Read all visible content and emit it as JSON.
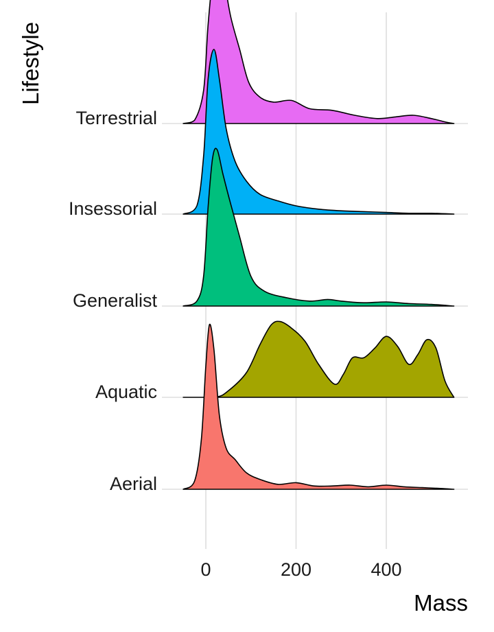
{
  "chart_data": {
    "type": "ridgeline",
    "xlabel": "Mass",
    "ylabel": "Lifestyle",
    "xlim": [
      -60,
      580
    ],
    "x_ticks": [
      0,
      200,
      400
    ],
    "grid": true,
    "legend": "none",
    "series": [
      {
        "name": "Aerial",
        "color": "#F8766D",
        "density_points": [
          [
            -50,
            0
          ],
          [
            -25,
            0.05
          ],
          [
            -10,
            0.3
          ],
          [
            0,
            0.75
          ],
          [
            8,
            1.0
          ],
          [
            18,
            0.85
          ],
          [
            30,
            0.45
          ],
          [
            45,
            0.25
          ],
          [
            65,
            0.18
          ],
          [
            90,
            0.1
          ],
          [
            120,
            0.06
          ],
          [
            160,
            0.03
          ],
          [
            200,
            0.04
          ],
          [
            240,
            0.02
          ],
          [
            280,
            0.02
          ],
          [
            320,
            0.025
          ],
          [
            360,
            0.015
          ],
          [
            400,
            0.025
          ],
          [
            440,
            0.015
          ],
          [
            480,
            0.01
          ],
          [
            520,
            0.005
          ],
          [
            550,
            0
          ]
        ]
      },
      {
        "name": "Aquatic",
        "color": "#A3A500",
        "density_points": [
          [
            -50,
            0
          ],
          [
            20,
            0
          ],
          [
            50,
            0.04
          ],
          [
            90,
            0.15
          ],
          [
            120,
            0.32
          ],
          [
            145,
            0.44
          ],
          [
            165,
            0.46
          ],
          [
            190,
            0.42
          ],
          [
            220,
            0.34
          ],
          [
            250,
            0.2
          ],
          [
            285,
            0.08
          ],
          [
            305,
            0.14
          ],
          [
            325,
            0.24
          ],
          [
            350,
            0.24
          ],
          [
            375,
            0.3
          ],
          [
            400,
            0.37
          ],
          [
            425,
            0.31
          ],
          [
            450,
            0.2
          ],
          [
            470,
            0.26
          ],
          [
            490,
            0.35
          ],
          [
            510,
            0.3
          ],
          [
            530,
            0.1
          ],
          [
            550,
            0
          ]
        ]
      },
      {
        "name": "Generalist",
        "color": "#00BF7D",
        "density_points": [
          [
            -50,
            0
          ],
          [
            -20,
            0.03
          ],
          [
            -5,
            0.18
          ],
          [
            5,
            0.6
          ],
          [
            15,
            0.9
          ],
          [
            25,
            0.95
          ],
          [
            38,
            0.8
          ],
          [
            55,
            0.62
          ],
          [
            75,
            0.42
          ],
          [
            100,
            0.18
          ],
          [
            130,
            0.09
          ],
          [
            180,
            0.05
          ],
          [
            230,
            0.03
          ],
          [
            270,
            0.04
          ],
          [
            300,
            0.03
          ],
          [
            350,
            0.02
          ],
          [
            400,
            0.025
          ],
          [
            450,
            0.015
          ],
          [
            500,
            0.01
          ],
          [
            550,
            0
          ]
        ]
      },
      {
        "name": "Insessorial",
        "color": "#00B0F6",
        "density_points": [
          [
            -50,
            0
          ],
          [
            -20,
            0.05
          ],
          [
            -5,
            0.35
          ],
          [
            5,
            0.82
          ],
          [
            18,
            1.0
          ],
          [
            30,
            0.82
          ],
          [
            45,
            0.52
          ],
          [
            65,
            0.32
          ],
          [
            90,
            0.2
          ],
          [
            120,
            0.12
          ],
          [
            160,
            0.08
          ],
          [
            200,
            0.05
          ],
          [
            250,
            0.03
          ],
          [
            300,
            0.02
          ],
          [
            350,
            0.015
          ],
          [
            400,
            0.01
          ],
          [
            450,
            0.005
          ],
          [
            500,
            0.005
          ],
          [
            550,
            0
          ]
        ]
      },
      {
        "name": "Terrestrial",
        "color": "#E76BF3",
        "density_points": [
          [
            -50,
            0
          ],
          [
            -25,
            0.02
          ],
          [
            -5,
            0.2
          ],
          [
            5,
            0.6
          ],
          [
            18,
            0.95
          ],
          [
            28,
            1.0
          ],
          [
            40,
            0.88
          ],
          [
            55,
            0.65
          ],
          [
            75,
            0.45
          ],
          [
            95,
            0.25
          ],
          [
            120,
            0.16
          ],
          [
            150,
            0.13
          ],
          [
            190,
            0.14
          ],
          [
            230,
            0.09
          ],
          [
            280,
            0.08
          ],
          [
            330,
            0.05
          ],
          [
            380,
            0.03
          ],
          [
            420,
            0.04
          ],
          [
            460,
            0.05
          ],
          [
            500,
            0.03
          ],
          [
            530,
            0.01
          ],
          [
            550,
            0
          ]
        ]
      }
    ]
  }
}
